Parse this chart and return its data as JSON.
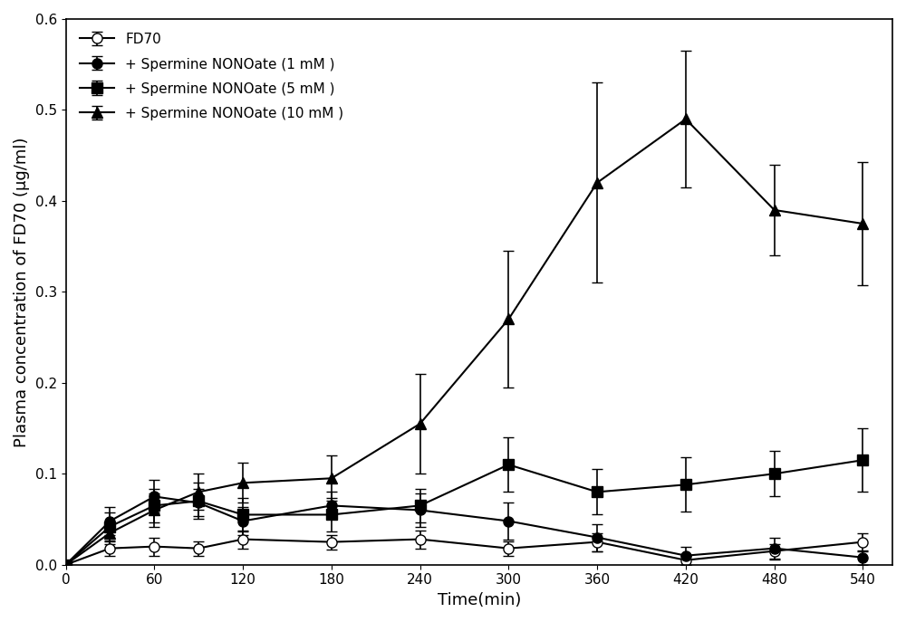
{
  "time": [
    0,
    30,
    60,
    90,
    120,
    180,
    240,
    300,
    360,
    420,
    480,
    540
  ],
  "fd70": {
    "y": [
      0.0,
      0.018,
      0.02,
      0.018,
      0.028,
      0.025,
      0.028,
      0.018,
      0.025,
      0.005,
      0.015,
      0.025
    ],
    "yerr": [
      0.0,
      0.008,
      0.01,
      0.008,
      0.01,
      0.008,
      0.01,
      0.008,
      0.01,
      0.005,
      0.008,
      0.01
    ],
    "label": "FD70",
    "color": "#000000",
    "marker": "o",
    "markerfacecolor": "white",
    "markersize": 8,
    "linewidth": 1.5
  },
  "spermine_1mM": {
    "y": [
      0.0,
      0.048,
      0.075,
      0.068,
      0.048,
      0.065,
      0.06,
      0.048,
      0.03,
      0.01,
      0.018,
      0.008
    ],
    "yerr": [
      0.0,
      0.015,
      0.018,
      0.015,
      0.015,
      0.015,
      0.018,
      0.02,
      0.015,
      0.01,
      0.012,
      0.008
    ],
    "label": "+ Spermine NONOate (1 mM )",
    "color": "#000000",
    "marker": "o",
    "markerfacecolor": "#000000",
    "markersize": 8,
    "linewidth": 1.5
  },
  "spermine_5mM": {
    "y": [
      0.0,
      0.042,
      0.065,
      0.07,
      0.055,
      0.055,
      0.065,
      0.11,
      0.08,
      0.088,
      0.1,
      0.115
    ],
    "yerr": [
      0.0,
      0.015,
      0.018,
      0.02,
      0.018,
      0.018,
      0.018,
      0.03,
      0.025,
      0.03,
      0.025,
      0.035
    ],
    "label": "+ Spermine NONOate (5 mM )",
    "color": "#000000",
    "marker": "s",
    "markerfacecolor": "#000000",
    "markersize": 8,
    "linewidth": 1.5
  },
  "spermine_10mM": {
    "y": [
      0.0,
      0.035,
      0.06,
      0.08,
      0.09,
      0.095,
      0.155,
      0.27,
      0.42,
      0.49,
      0.39,
      0.375
    ],
    "yerr": [
      0.0,
      0.012,
      0.018,
      0.02,
      0.022,
      0.025,
      0.055,
      0.075,
      0.11,
      0.075,
      0.05,
      0.068
    ],
    "label": "+ Spermine NONOate (10 mM )",
    "color": "#000000",
    "marker": "^",
    "markerfacecolor": "#000000",
    "markersize": 8,
    "linewidth": 1.5
  },
  "xlabel": "Time(min)",
  "ylabel": "Plasma concentration of FD70 (μg/ml)",
  "xlim": [
    0,
    560
  ],
  "ylim": [
    0,
    0.6
  ],
  "xticks": [
    0,
    60,
    120,
    180,
    240,
    300,
    360,
    420,
    480,
    540
  ],
  "yticks": [
    0.0,
    0.1,
    0.2,
    0.3,
    0.4,
    0.5,
    0.6
  ],
  "background_color": "#ffffff",
  "grid": false
}
